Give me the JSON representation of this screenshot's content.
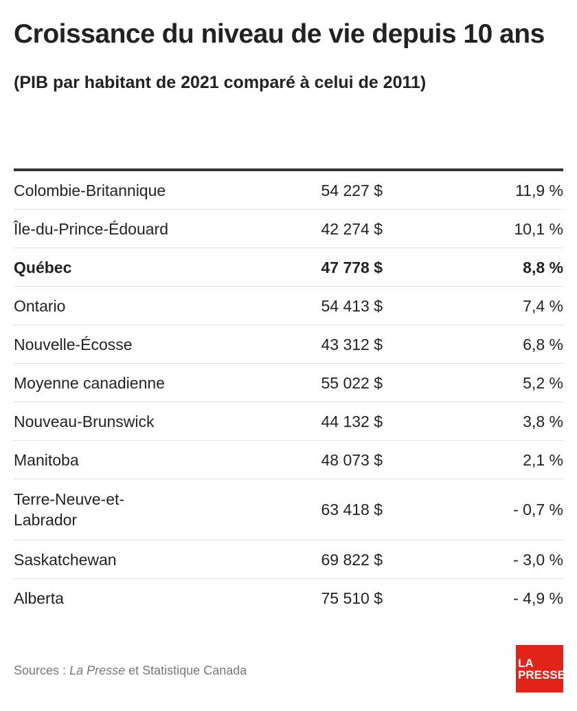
{
  "header": {
    "title": "Croissance du niveau de vie depuis 10 ans",
    "subtitle": "(PIB par habitant de 2021 comparé à celui de 2011)"
  },
  "table": {
    "rows": [
      [
        "Colombie-Britannique",
        "54 227 $",
        "11,9 %"
      ],
      [
        "Île-du-Prince-Édouard",
        "42 274 $",
        "10,1 %"
      ],
      [
        "Québec",
        "47 778 $",
        "8,8 %"
      ],
      [
        "Ontario",
        "54 413 $",
        "7,4 %"
      ],
      [
        "Nouvelle-Écosse",
        "43 312 $",
        "6,8 %"
      ],
      [
        "Moyenne canadienne",
        "55 022 $",
        "5,2 %"
      ],
      [
        "Nouveau-Brunswick",
        "44 132 $",
        "3,8 %"
      ],
      [
        "Manitoba",
        "48 073 $",
        "2,1 %"
      ],
      [
        "Terre-Neuve-et-Labrador",
        "63 418 $",
        "- 0,7 %"
      ],
      [
        "Saskatchewan",
        "69 822 $",
        "- 3,0 %"
      ],
      [
        "Alberta",
        "75 510 $",
        "- 4,9 %"
      ]
    ]
  },
  "footer": {
    "source_prefix": "Sources :",
    "source_publication": "La Presse",
    "source_rest": "et Statistique Canada",
    "logo": [
      "LA",
      "PRESSE"
    ]
  }
}
